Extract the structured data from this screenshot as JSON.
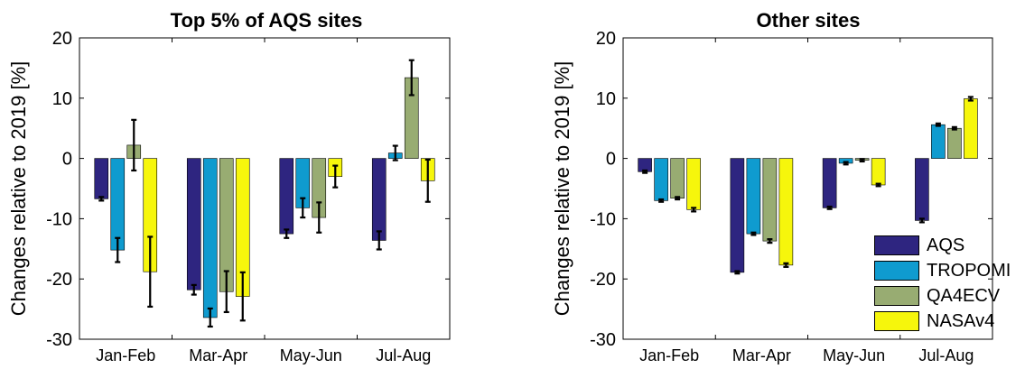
{
  "chart_data": [
    {
      "type": "bar",
      "title": "Top 5% of AQS sites",
      "ylabel": "Changes relative to 2019 [%]",
      "xlabel": "",
      "ylim": [
        -30,
        20
      ],
      "yticks": [
        20,
        10,
        0,
        -10,
        -20,
        -30
      ],
      "grid": false,
      "categories": [
        "Jan-Feb",
        "Mar-Apr",
        "May-Jun",
        "Jul-Aug"
      ],
      "series": [
        {
          "name": "AQS",
          "color": "#2e2580",
          "values": [
            -6.7,
            -21.8,
            -12.5,
            -13.6
          ],
          "errors": [
            0.3,
            0.8,
            0.7,
            1.5
          ]
        },
        {
          "name": "TROPOMI",
          "color": "#0f9bcf",
          "values": [
            -15.2,
            -26.4,
            -8.2,
            0.9
          ],
          "errors": [
            2.0,
            1.5,
            1.6,
            1.2
          ]
        },
        {
          "name": "QA4ECV",
          "color": "#98ac72",
          "values": [
            2.2,
            -22.1,
            -9.8,
            13.4
          ],
          "errors": [
            4.2,
            3.4,
            2.5,
            2.9
          ]
        },
        {
          "name": "NASAv4",
          "color": "#f6f60c",
          "values": [
            -18.8,
            -22.9,
            -3.0,
            -3.7
          ],
          "errors": [
            5.8,
            4.0,
            1.8,
            3.5
          ]
        }
      ]
    },
    {
      "type": "bar",
      "title": "Other sites",
      "ylabel": "Changes relative to 2019 [%]",
      "xlabel": "",
      "ylim": [
        -30,
        20
      ],
      "yticks": [
        20,
        10,
        0,
        -10,
        -20,
        -30
      ],
      "grid": false,
      "legend_position": "bottom-right",
      "categories": [
        "Jan-Feb",
        "Mar-Apr",
        "May-Jun",
        "Jul-Aug"
      ],
      "series": [
        {
          "name": "AQS",
          "color": "#2e2580",
          "values": [
            -2.2,
            -18.9,
            -8.2,
            -10.3
          ],
          "errors": [
            0.2,
            0.2,
            0.2,
            0.3
          ]
        },
        {
          "name": "TROPOMI",
          "color": "#0f9bcf",
          "values": [
            -7.0,
            -12.5,
            -0.8,
            5.6
          ],
          "errors": [
            0.2,
            0.2,
            0.2,
            0.2
          ]
        },
        {
          "name": "QA4ECV",
          "color": "#98ac72",
          "values": [
            -6.6,
            -13.7,
            -0.3,
            5.0
          ],
          "errors": [
            0.2,
            0.3,
            0.2,
            0.2
          ]
        },
        {
          "name": "NASAv4",
          "color": "#f6f60c",
          "values": [
            -8.5,
            -17.7,
            -4.4,
            9.9
          ],
          "errors": [
            0.3,
            0.3,
            0.2,
            0.3
          ]
        }
      ]
    }
  ]
}
